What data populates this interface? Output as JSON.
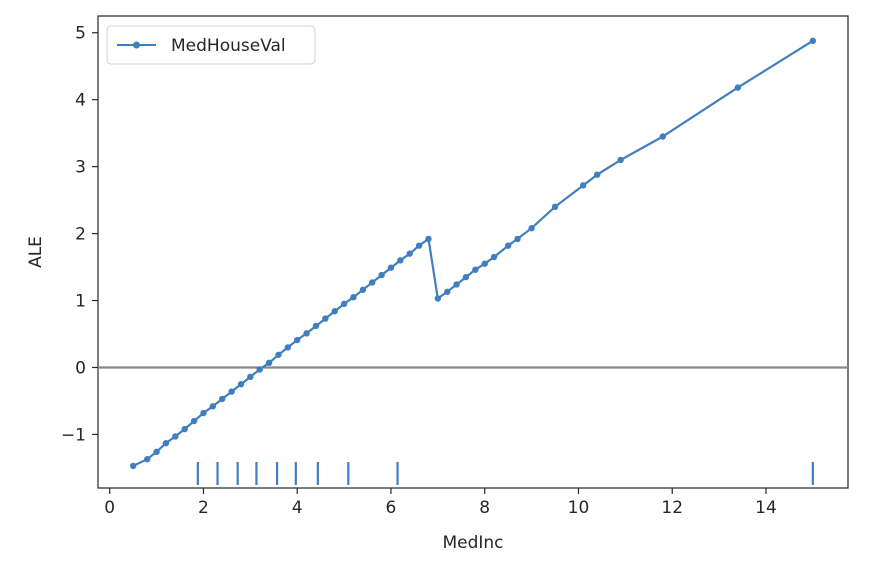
{
  "chart_data": {
    "type": "line",
    "title": "",
    "xlabel": "MedInc",
    "ylabel": "ALE",
    "xlim": [
      -0.25,
      15.75
    ],
    "ylim": [
      -1.8,
      5.25
    ],
    "xticks": [
      0,
      2,
      4,
      6,
      8,
      10,
      12,
      14
    ],
    "yticks": [
      -1,
      0,
      1,
      2,
      3,
      4,
      5
    ],
    "xtick_labels": [
      "0",
      "2",
      "4",
      "6",
      "8",
      "10",
      "12",
      "14"
    ],
    "ytick_labels": [
      "−1",
      "0",
      "1",
      "2",
      "3",
      "4",
      "5"
    ],
    "reference_line_y": 0,
    "legend_position": "top-left",
    "series": [
      {
        "name": "MedHouseVal",
        "color": "#3f7fbf",
        "marker": "dot",
        "x": [
          0.5,
          0.8,
          1.0,
          1.2,
          1.4,
          1.6,
          1.8,
          2.0,
          2.2,
          2.4,
          2.6,
          2.8,
          3.0,
          3.2,
          3.4,
          3.6,
          3.8,
          4.0,
          4.2,
          4.4,
          4.6,
          4.8,
          5.0,
          5.2,
          5.4,
          5.6,
          5.8,
          6.0,
          6.2,
          6.4,
          6.6,
          6.8,
          7.0,
          7.2,
          7.4,
          7.6,
          7.8,
          8.0,
          8.2,
          8.5,
          8.7,
          9.0,
          9.5,
          10.1,
          10.4,
          10.9,
          11.8,
          13.4,
          15.0
        ],
        "y": [
          -1.47,
          -1.37,
          -1.26,
          -1.13,
          -1.03,
          -0.92,
          -0.8,
          -0.68,
          -0.58,
          -0.47,
          -0.36,
          -0.25,
          -0.14,
          -0.03,
          0.07,
          0.19,
          0.3,
          0.41,
          0.51,
          0.62,
          0.73,
          0.84,
          0.95,
          1.05,
          1.16,
          1.27,
          1.38,
          1.49,
          1.6,
          1.7,
          1.82,
          1.92,
          1.03,
          1.13,
          1.24,
          1.35,
          1.46,
          1.55,
          1.65,
          1.82,
          1.92,
          2.08,
          2.4,
          2.72,
          2.88,
          3.1,
          3.45,
          4.18,
          4.88
        ]
      }
    ],
    "rug_x": [
      1.88,
      2.3,
      2.73,
      3.13,
      3.57,
      3.97,
      4.44,
      5.09,
      6.14,
      15.0
    ]
  }
}
